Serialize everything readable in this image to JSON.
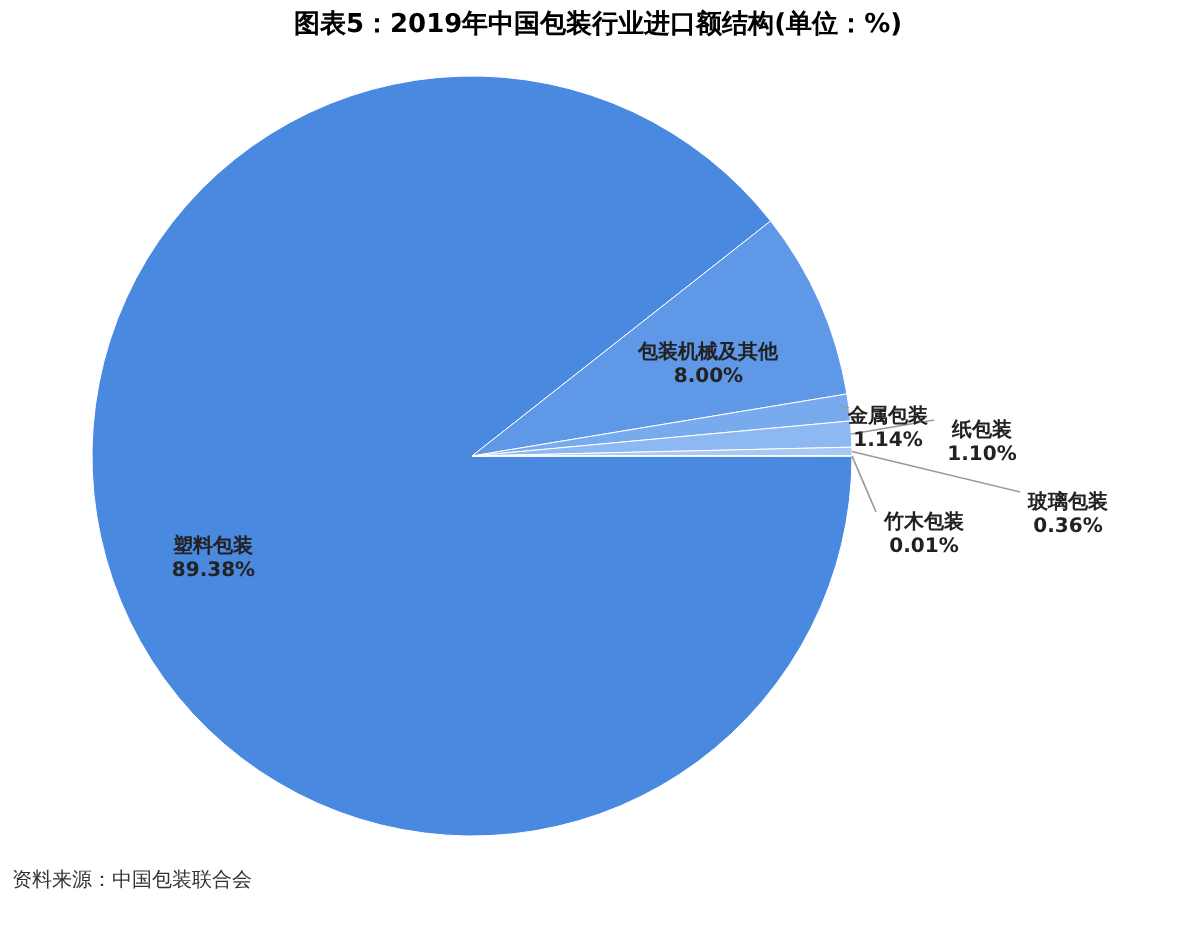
{
  "chart_data": {
    "type": "pie",
    "title": "图表5：2019年中国包装行业进口额结构(单位：%)",
    "categories": [
      "塑料包装",
      "包装机械及其他",
      "金属包装",
      "纸包装",
      "玻璃包装",
      "竹木包装"
    ],
    "values": [
      89.38,
      8.0,
      1.14,
      1.1,
      0.36,
      0.01
    ],
    "value_labels": [
      "89.38%",
      "8.00%",
      "1.14%",
      "1.10%",
      "0.36%",
      "0.01%"
    ],
    "colors": [
      "#4a89e0",
      "#5f98e6",
      "#78aaee",
      "#8db8f2",
      "#a8c9f6",
      "#c2daf9"
    ],
    "annotations": [
      "资料来源：中国包装联合会"
    ],
    "legend": false
  }
}
